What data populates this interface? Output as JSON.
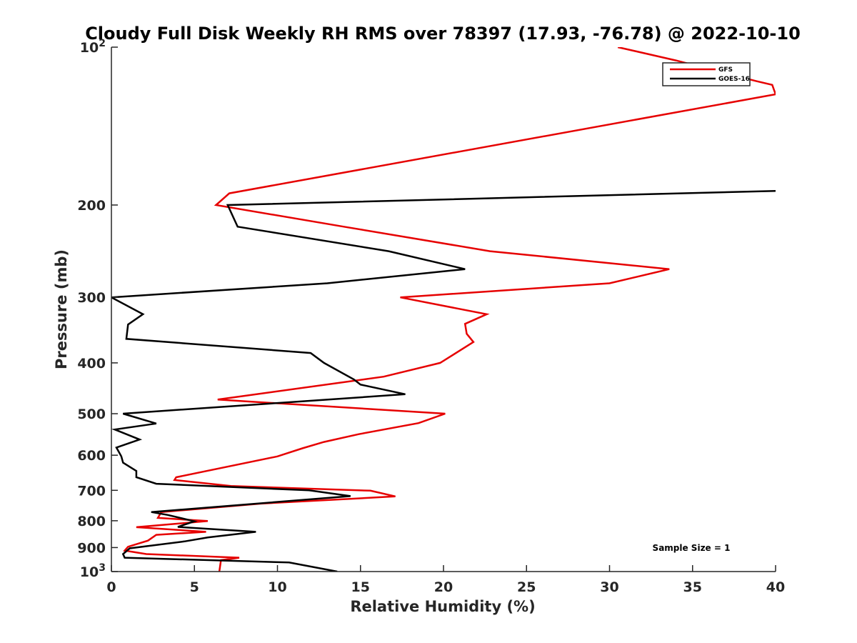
{
  "chart_data": {
    "type": "line",
    "title": "Cloudy Full Disk Weekly RH RMS over 78397 (17.93, -76.78) @ 2022-10-10",
    "xlabel": "Relative Humidity (%)",
    "ylabel": "Pressure (mb)",
    "xlim": [
      0,
      40
    ],
    "ylim": [
      100,
      1000
    ],
    "y_scale": "log-reversed",
    "x_ticks": [
      "0",
      "5",
      "10",
      "15",
      "20",
      "25",
      "30",
      "35",
      "40"
    ],
    "y_ticks": [
      {
        "value": 100,
        "base": "10",
        "exp": "2"
      },
      {
        "value": 200,
        "label": "200"
      },
      {
        "value": 300,
        "label": "300"
      },
      {
        "value": 400,
        "label": "400"
      },
      {
        "value": 500,
        "label": "500"
      },
      {
        "value": 600,
        "label": "600"
      },
      {
        "value": 700,
        "label": "700"
      },
      {
        "value": 800,
        "label": "800"
      },
      {
        "value": 900,
        "label": "900"
      },
      {
        "value": 1000,
        "base": "10",
        "exp": "3"
      }
    ],
    "legend_position": "top-right",
    "annotation": "Sample Size = 1",
    "series": [
      {
        "name": "GFS",
        "color": "#e60000",
        "points": [
          [
            30.5,
            100
          ],
          [
            34.0,
            106
          ],
          [
            38.8,
            116
          ],
          [
            39.8,
            118
          ],
          [
            40.0,
            123
          ],
          [
            7.1,
            190
          ],
          [
            6.3,
            200
          ],
          [
            14.0,
            220
          ],
          [
            22.8,
            245
          ],
          [
            33.6,
            265
          ],
          [
            30.0,
            282
          ],
          [
            17.4,
            300
          ],
          [
            22.6,
            323
          ],
          [
            21.3,
            337
          ],
          [
            21.4,
            352
          ],
          [
            21.8,
            365
          ],
          [
            19.8,
            400
          ],
          [
            16.4,
            425
          ],
          [
            6.4,
            470
          ],
          [
            20.1,
            500
          ],
          [
            18.5,
            521
          ],
          [
            14.9,
            547
          ],
          [
            12.8,
            566
          ],
          [
            11.5,
            582
          ],
          [
            10.0,
            603
          ],
          [
            3.9,
            661
          ],
          [
            3.8,
            669
          ],
          [
            7.2,
            687
          ],
          [
            15.6,
            701
          ],
          [
            17.1,
            719
          ],
          [
            9.0,
            742
          ],
          [
            3.0,
            770
          ],
          [
            2.8,
            790
          ],
          [
            5.8,
            801
          ],
          [
            1.5,
            823
          ],
          [
            5.7,
            840
          ],
          [
            2.7,
            851
          ],
          [
            2.2,
            873
          ],
          [
            1.0,
            897
          ],
          [
            0.8,
            912
          ],
          [
            2.1,
            926
          ],
          [
            7.7,
            941
          ],
          [
            6.6,
            951
          ],
          [
            6.5,
            1000
          ]
        ]
      },
      {
        "name": "GOES-16",
        "color": "#000000",
        "points": [
          [
            40.0,
            188
          ],
          [
            7.0,
            200
          ],
          [
            7.6,
            220
          ],
          [
            16.7,
            245
          ],
          [
            21.3,
            265
          ],
          [
            13.0,
            282
          ],
          [
            0.0,
            300
          ],
          [
            1.9,
            323
          ],
          [
            1.0,
            338
          ],
          [
            0.9,
            360
          ],
          [
            12.0,
            383
          ],
          [
            12.8,
            400
          ],
          [
            14.6,
            430
          ],
          [
            15.0,
            440
          ],
          [
            17.7,
            459
          ],
          [
            0.7,
            500
          ],
          [
            2.7,
            522
          ],
          [
            0.2,
            536
          ],
          [
            1.7,
            560
          ],
          [
            0.3,
            580
          ],
          [
            0.6,
            603
          ],
          [
            0.7,
            620
          ],
          [
            1.5,
            643
          ],
          [
            1.5,
            661
          ],
          [
            2.7,
            680
          ],
          [
            11.9,
            700
          ],
          [
            14.4,
            718
          ],
          [
            2.4,
            770
          ],
          [
            3.4,
            780
          ],
          [
            5.0,
            802
          ],
          [
            4.0,
            822
          ],
          [
            8.7,
            840
          ],
          [
            5.8,
            861
          ],
          [
            4.4,
            876
          ],
          [
            1.1,
            903
          ],
          [
            0.7,
            926
          ],
          [
            0.8,
            941
          ],
          [
            10.7,
            961
          ],
          [
            13.6,
            1000
          ]
        ]
      }
    ]
  }
}
